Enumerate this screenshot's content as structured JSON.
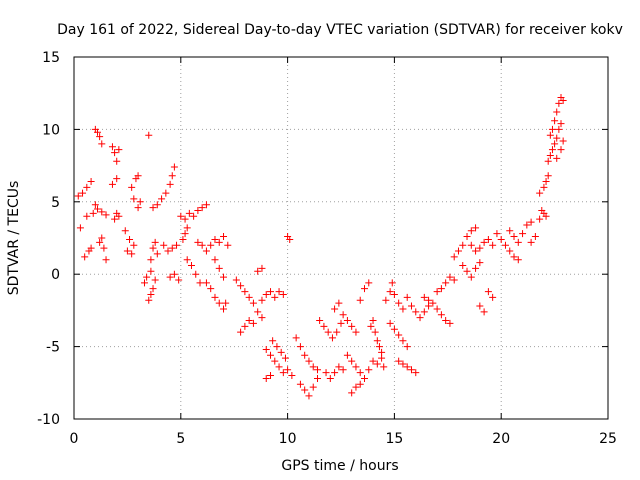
{
  "chart_data": {
    "type": "scatter",
    "title": "Day 161 of 2022, Sidereal Day-to-day VTEC variation (SDTVAR) for receiver kokv",
    "xlabel": "GPS time / hours",
    "ylabel": "SDTVAR / TECUs",
    "xlim": [
      0,
      25
    ],
    "ylim": [
      -10,
      15
    ],
    "xticks": [
      "0",
      "5",
      "10",
      "15",
      "20",
      "25"
    ],
    "yticks": [
      "15",
      "10",
      "5",
      "0",
      "-5",
      "-10"
    ],
    "grid": true,
    "marker": "plus",
    "color": "#ff0000",
    "series": [
      {
        "name": "SDTVAR",
        "points": [
          [
            0.2,
            5.4
          ],
          [
            0.4,
            5.6
          ],
          [
            0.6,
            6.0
          ],
          [
            0.8,
            6.4
          ],
          [
            0.3,
            3.2
          ],
          [
            0.5,
            1.2
          ],
          [
            0.7,
            1.6
          ],
          [
            0.8,
            1.8
          ],
          [
            0.6,
            4.0
          ],
          [
            0.9,
            4.2
          ],
          [
            1.0,
            4.8
          ],
          [
            1.1,
            4.5
          ],
          [
            1.3,
            4.3
          ],
          [
            1.5,
            4.1
          ],
          [
            1.0,
            10.0
          ],
          [
            1.1,
            9.8
          ],
          [
            1.2,
            9.5
          ],
          [
            1.3,
            9.0
          ],
          [
            1.2,
            2.2
          ],
          [
            1.3,
            2.5
          ],
          [
            1.4,
            1.8
          ],
          [
            1.5,
            1.0
          ],
          [
            1.8,
            8.8
          ],
          [
            1.9,
            8.4
          ],
          [
            2.0,
            7.8
          ],
          [
            2.1,
            8.6
          ],
          [
            1.8,
            6.2
          ],
          [
            2.0,
            6.6
          ],
          [
            1.9,
            3.8
          ],
          [
            2.0,
            4.2
          ],
          [
            2.1,
            4.0
          ],
          [
            2.4,
            3.0
          ],
          [
            2.6,
            2.4
          ],
          [
            2.5,
            1.6
          ],
          [
            2.7,
            1.4
          ],
          [
            2.8,
            2.0
          ],
          [
            2.7,
            6.0
          ],
          [
            2.9,
            6.6
          ],
          [
            3.0,
            6.8
          ],
          [
            2.8,
            5.2
          ],
          [
            3.0,
            4.6
          ],
          [
            3.1,
            5.0
          ],
          [
            3.3,
            -0.6
          ],
          [
            3.4,
            -0.2
          ],
          [
            3.6,
            0.2
          ],
          [
            3.5,
            9.6
          ],
          [
            3.5,
            -1.8
          ],
          [
            3.6,
            -1.4
          ],
          [
            3.7,
            -1.0
          ],
          [
            3.8,
            -0.4
          ],
          [
            3.6,
            1.0
          ],
          [
            3.9,
            1.4
          ],
          [
            3.7,
            1.8
          ],
          [
            3.8,
            2.2
          ],
          [
            3.7,
            4.6
          ],
          [
            3.9,
            4.8
          ],
          [
            4.1,
            5.2
          ],
          [
            4.3,
            5.6
          ],
          [
            4.5,
            6.2
          ],
          [
            4.6,
            6.8
          ],
          [
            4.7,
            7.4
          ],
          [
            4.2,
            2.0
          ],
          [
            4.4,
            1.6
          ],
          [
            4.6,
            1.8
          ],
          [
            4.8,
            2.0
          ],
          [
            4.5,
            -0.2
          ],
          [
            4.7,
            0.0
          ],
          [
            4.9,
            -0.4
          ],
          [
            5.1,
            2.4
          ],
          [
            5.2,
            2.8
          ],
          [
            5.3,
            3.2
          ],
          [
            5.0,
            4.0
          ],
          [
            5.2,
            3.8
          ],
          [
            5.4,
            4.2
          ],
          [
            5.6,
            4.0
          ],
          [
            5.8,
            4.4
          ],
          [
            6.0,
            4.6
          ],
          [
            6.2,
            4.8
          ],
          [
            5.3,
            1.0
          ],
          [
            5.5,
            0.6
          ],
          [
            5.7,
            0.0
          ],
          [
            5.9,
            -0.6
          ],
          [
            5.8,
            2.2
          ],
          [
            6.0,
            2.0
          ],
          [
            6.2,
            1.6
          ],
          [
            6.4,
            2.0
          ],
          [
            6.6,
            2.4
          ],
          [
            6.8,
            2.2
          ],
          [
            7.0,
            2.6
          ],
          [
            7.2,
            2.0
          ],
          [
            6.2,
            -0.6
          ],
          [
            6.4,
            -1.0
          ],
          [
            6.6,
            -1.6
          ],
          [
            6.8,
            -2.0
          ],
          [
            7.0,
            -2.4
          ],
          [
            7.1,
            -2.0
          ],
          [
            6.6,
            1.0
          ],
          [
            6.8,
            0.4
          ],
          [
            7.0,
            -0.2
          ],
          [
            7.6,
            -0.4
          ],
          [
            7.8,
            -0.8
          ],
          [
            8.0,
            -1.2
          ],
          [
            8.2,
            -1.6
          ],
          [
            8.4,
            -2.0
          ],
          [
            8.6,
            0.2
          ],
          [
            8.8,
            0.4
          ],
          [
            7.8,
            -4.0
          ],
          [
            8.0,
            -3.6
          ],
          [
            8.2,
            -3.2
          ],
          [
            8.4,
            -3.4
          ],
          [
            8.6,
            -2.6
          ],
          [
            8.8,
            -3.0
          ],
          [
            8.8,
            -1.8
          ],
          [
            9.0,
            -1.4
          ],
          [
            9.2,
            -1.2
          ],
          [
            9.4,
            -1.6
          ],
          [
            9.6,
            -1.2
          ],
          [
            9.8,
            -1.4
          ],
          [
            9.0,
            -5.2
          ],
          [
            9.2,
            -5.6
          ],
          [
            9.4,
            -6.0
          ],
          [
            9.6,
            -6.4
          ],
          [
            9.8,
            -6.8
          ],
          [
            10.0,
            -6.6
          ],
          [
            10.2,
            -7.0
          ],
          [
            9.3,
            -4.6
          ],
          [
            9.5,
            -5.0
          ],
          [
            9.7,
            -5.4
          ],
          [
            9.9,
            -5.8
          ],
          [
            9.0,
            -7.2
          ],
          [
            9.2,
            -7.0
          ],
          [
            10.0,
            2.6
          ],
          [
            10.1,
            2.4
          ],
          [
            10.4,
            -4.4
          ],
          [
            10.6,
            -5.0
          ],
          [
            10.8,
            -5.6
          ],
          [
            11.0,
            -6.0
          ],
          [
            11.2,
            -6.4
          ],
          [
            11.4,
            -6.6
          ],
          [
            10.6,
            -7.6
          ],
          [
            10.8,
            -8.0
          ],
          [
            11.0,
            -8.4
          ],
          [
            11.2,
            -7.8
          ],
          [
            11.4,
            -7.2
          ],
          [
            11.5,
            -3.2
          ],
          [
            11.7,
            -3.6
          ],
          [
            11.9,
            -4.0
          ],
          [
            12.1,
            -4.4
          ],
          [
            12.3,
            -4.0
          ],
          [
            12.5,
            -3.4
          ],
          [
            11.8,
            -6.8
          ],
          [
            12.0,
            -7.2
          ],
          [
            12.2,
            -6.8
          ],
          [
            12.4,
            -6.4
          ],
          [
            12.6,
            -6.6
          ],
          [
            12.2,
            -2.4
          ],
          [
            12.4,
            -2.0
          ],
          [
            12.6,
            -2.8
          ],
          [
            12.8,
            -3.2
          ],
          [
            13.0,
            -3.6
          ],
          [
            13.2,
            -4.0
          ],
          [
            12.8,
            -5.6
          ],
          [
            13.0,
            -6.0
          ],
          [
            13.2,
            -6.4
          ],
          [
            13.4,
            -6.8
          ],
          [
            13.6,
            -7.2
          ],
          [
            13.8,
            -6.6
          ],
          [
            13.0,
            -8.2
          ],
          [
            13.2,
            -7.8
          ],
          [
            13.4,
            -7.6
          ],
          [
            13.4,
            -1.8
          ],
          [
            13.6,
            -1.0
          ],
          [
            13.8,
            -0.6
          ],
          [
            13.9,
            -3.6
          ],
          [
            14.0,
            -3.2
          ],
          [
            14.1,
            -4.0
          ],
          [
            14.2,
            -4.6
          ],
          [
            14.3,
            -5.0
          ],
          [
            14.4,
            -5.4
          ],
          [
            14.0,
            -6.0
          ],
          [
            14.2,
            -6.2
          ],
          [
            14.4,
            -5.8
          ],
          [
            14.5,
            -6.4
          ],
          [
            14.6,
            -1.8
          ],
          [
            14.8,
            -1.2
          ],
          [
            14.9,
            -0.6
          ],
          [
            15.0,
            -1.4
          ],
          [
            15.2,
            -2.0
          ],
          [
            15.4,
            -2.4
          ],
          [
            14.8,
            -3.4
          ],
          [
            15.0,
            -3.8
          ],
          [
            15.2,
            -4.2
          ],
          [
            15.4,
            -4.6
          ],
          [
            15.6,
            -5.0
          ],
          [
            15.2,
            -6.0
          ],
          [
            15.4,
            -6.2
          ],
          [
            15.6,
            -6.4
          ],
          [
            15.8,
            -6.6
          ],
          [
            16.0,
            -6.8
          ],
          [
            15.6,
            -1.6
          ],
          [
            15.8,
            -2.2
          ],
          [
            16.0,
            -2.6
          ],
          [
            16.2,
            -3.0
          ],
          [
            16.4,
            -2.6
          ],
          [
            16.6,
            -2.2
          ],
          [
            16.4,
            -1.6
          ],
          [
            16.6,
            -1.8
          ],
          [
            16.8,
            -2.0
          ],
          [
            17.0,
            -2.4
          ],
          [
            17.2,
            -2.8
          ],
          [
            17.4,
            -3.2
          ],
          [
            17.6,
            -3.4
          ],
          [
            17.0,
            -1.2
          ],
          [
            17.2,
            -1.0
          ],
          [
            17.4,
            -0.6
          ],
          [
            17.6,
            -0.2
          ],
          [
            17.8,
            -0.4
          ],
          [
            17.8,
            1.2
          ],
          [
            18.0,
            1.6
          ],
          [
            18.2,
            2.0
          ],
          [
            18.4,
            2.6
          ],
          [
            18.6,
            3.0
          ],
          [
            18.8,
            3.2
          ],
          [
            18.2,
            0.6
          ],
          [
            18.4,
            0.2
          ],
          [
            18.6,
            -0.2
          ],
          [
            18.8,
            0.4
          ],
          [
            19.0,
            0.8
          ],
          [
            18.6,
            2.0
          ],
          [
            18.8,
            1.6
          ],
          [
            19.0,
            1.8
          ],
          [
            19.2,
            2.2
          ],
          [
            19.4,
            2.4
          ],
          [
            19.6,
            2.0
          ],
          [
            19.0,
            -2.2
          ],
          [
            19.2,
            -2.6
          ],
          [
            19.4,
            -1.2
          ],
          [
            19.6,
            -1.6
          ],
          [
            19.8,
            2.8
          ],
          [
            20.0,
            2.4
          ],
          [
            20.2,
            2.0
          ],
          [
            20.4,
            1.6
          ],
          [
            20.6,
            1.2
          ],
          [
            20.8,
            1.0
          ],
          [
            20.4,
            3.0
          ],
          [
            20.6,
            2.6
          ],
          [
            20.8,
            2.2
          ],
          [
            21.0,
            2.8
          ],
          [
            21.2,
            3.4
          ],
          [
            21.4,
            3.6
          ],
          [
            21.4,
            2.2
          ],
          [
            21.6,
            2.6
          ],
          [
            21.8,
            3.8
          ],
          [
            21.9,
            4.4
          ],
          [
            22.0,
            4.2
          ],
          [
            22.1,
            4.0
          ],
          [
            21.8,
            5.6
          ],
          [
            22.0,
            6.0
          ],
          [
            22.1,
            6.4
          ],
          [
            22.2,
            6.8
          ],
          [
            22.2,
            7.8
          ],
          [
            22.3,
            8.2
          ],
          [
            22.4,
            8.6
          ],
          [
            22.5,
            9.0
          ],
          [
            22.6,
            9.4
          ],
          [
            22.7,
            10.0
          ],
          [
            22.8,
            10.4
          ],
          [
            22.3,
            9.6
          ],
          [
            22.4,
            10.0
          ],
          [
            22.5,
            10.6
          ],
          [
            22.6,
            11.2
          ],
          [
            22.7,
            11.8
          ],
          [
            22.8,
            12.2
          ],
          [
            22.9,
            12.0
          ],
          [
            22.6,
            8.0
          ],
          [
            22.8,
            8.6
          ],
          [
            22.9,
            9.2
          ]
        ]
      }
    ]
  }
}
